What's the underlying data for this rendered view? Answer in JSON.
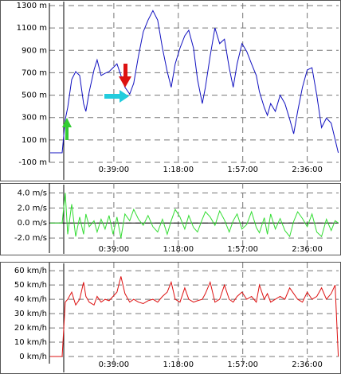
{
  "chart_data": [
    {
      "type": "line",
      "color": "#1010c0",
      "x": [
        0.5,
        7.7,
        9.6,
        11.1,
        13.5,
        15.9,
        18.3,
        20.7,
        22.1,
        24.1,
        27,
        28.9,
        31.3,
        33.7,
        36.1,
        38.5,
        40.9,
        43.3,
        45.7,
        48.6,
        51,
        53.9,
        56.8,
        59.7,
        62.6,
        65.5,
        68.4,
        71.3,
        73.7,
        76.1,
        79,
        81.9,
        84.3,
        87.2,
        89.6,
        92.5,
        94.4,
        97.3,
        100.2,
        103,
        105.9,
        108.8,
        111.2,
        113.6,
        116.5,
        119.4,
        122.3,
        125.2,
        127.1,
        130,
        131.9,
        133.9,
        136.7,
        139.6,
        142.5,
        145.4,
        147.8,
        150.2,
        153.1,
        156,
        158.9,
        161.8,
        164.7,
        167.6,
        170.5,
        172.9,
        174.8
      ],
      "values": [
        -15,
        -15,
        283,
        390,
        640,
        710,
        675,
        425,
        355,
        530,
        725,
        815,
        675,
        695,
        710,
        745,
        780,
        675,
        570,
        510,
        605,
        850,
        1065,
        1170,
        1255,
        1170,
        920,
        710,
        570,
        780,
        920,
        1030,
        1080,
        920,
        640,
        425,
        570,
        850,
        1100,
        960,
        1000,
        745,
        570,
        780,
        960,
        890,
        780,
        675,
        530,
        390,
        320,
        425,
        355,
        500,
        425,
        285,
        155,
        355,
        570,
        725,
        745,
        500,
        210,
        295,
        250,
        105,
        -15
      ],
      "xlim": [
        0,
        175
      ],
      "ylim": [
        -100,
        1300
      ],
      "xticks": [
        {
          "value": 39,
          "label": "0:39:00"
        },
        {
          "value": 78,
          "label": "1:18:00"
        },
        {
          "value": 117,
          "label": "1:57:00"
        },
        {
          "value": 156,
          "label": "2:36:00"
        }
      ],
      "yticks": [
        {
          "value": 1300,
          "label": "1300 m"
        },
        {
          "value": 1100,
          "label": "1100 m"
        },
        {
          "value": 900,
          "label": "900 m"
        },
        {
          "value": 700,
          "label": "700 m"
        },
        {
          "value": 500,
          "label": "500 m"
        },
        {
          "value": 300,
          "label": "300 m"
        },
        {
          "value": 100,
          "label": "100 m"
        },
        {
          "value": -100,
          "label": "-100 m"
        }
      ],
      "grid": true
    },
    {
      "type": "line",
      "color": "#33dd33",
      "x": [
        0.5,
        7.7,
        9.6,
        11.1,
        13.5,
        15.9,
        18.3,
        20.7,
        22.1,
        24.1,
        27,
        28.9,
        31.3,
        33.7,
        36.1,
        38.5,
        40.9,
        43.3,
        45.7,
        48.6,
        51,
        53.9,
        56.8,
        59.7,
        62.6,
        65.5,
        68.4,
        71.3,
        73.7,
        76.1,
        79,
        81.9,
        84.3,
        87.2,
        89.6,
        92.5,
        94.4,
        97.3,
        100.2,
        103,
        105.9,
        108.8,
        111.2,
        113.6,
        116.5,
        119.4,
        122.3,
        125.2,
        127.1,
        130,
        131.9,
        133.9,
        136.7,
        139.6,
        142.5,
        145.4,
        147.8,
        150.2,
        153.1,
        156,
        158.9,
        161.8,
        164.7,
        167.6,
        170.5,
        172.9,
        174.8
      ],
      "values": [
        0,
        0,
        4.0,
        -1.5,
        2.5,
        -1.8,
        0.8,
        -1.5,
        1.2,
        -0.5,
        0.3,
        -1.2,
        0.5,
        -0.8,
        1.0,
        -1.5,
        0.8,
        -2.0,
        1.2,
        0.3,
        1.8,
        0.5,
        -0.3,
        1.0,
        -0.5,
        -1.2,
        0.5,
        -1.5,
        0.3,
        1.8,
        0.8,
        -0.8,
        1.0,
        -0.6,
        -1.2,
        0.5,
        1.5,
        0.8,
        -0.3,
        1.6,
        0.4,
        -1.2,
        0.3,
        1.2,
        -0.8,
        -0.2,
        1.5,
        -0.6,
        -1.3,
        0.7,
        -1.5,
        1.2,
        -0.8,
        0.6,
        -1.0,
        -1.8,
        0.2,
        1.5,
        0.6,
        -0.5,
        1.2,
        -1.2,
        -1.8,
        0.5,
        -1.0,
        0.3,
        0
      ],
      "xlim": [
        0,
        175
      ],
      "ylim": [
        -4,
        5
      ],
      "xticks": [
        {
          "value": 39,
          "label": "0:39:00"
        },
        {
          "value": 78,
          "label": "1:18:00"
        },
        {
          "value": 117,
          "label": "1:57:00"
        },
        {
          "value": 156,
          "label": "2:36:00"
        }
      ],
      "yticks": [
        {
          "value": 4,
          "label": "4.0 m/s"
        },
        {
          "value": 2,
          "label": "2.0 m/s"
        },
        {
          "value": 0,
          "label": "0.0 m/s"
        },
        {
          "value": -2,
          "label": "-2.0 m/s"
        }
      ],
      "grid": true,
      "zero_line": true
    },
    {
      "type": "line",
      "color": "#dd1111",
      "x": [
        0.5,
        7.7,
        9.6,
        11.1,
        13.5,
        15.9,
        18.3,
        20.7,
        22.1,
        24.1,
        27,
        28.9,
        31.3,
        33.7,
        36.1,
        38.5,
        40.9,
        43.3,
        45.7,
        48.6,
        51,
        53.9,
        56.8,
        59.7,
        62.6,
        65.5,
        68.4,
        71.3,
        73.7,
        76.1,
        79,
        81.9,
        84.3,
        87.2,
        89.6,
        92.5,
        94.4,
        97.3,
        100.2,
        103,
        105.9,
        108.8,
        111.2,
        113.6,
        116.5,
        119.4,
        122.3,
        125.2,
        127.1,
        130,
        131.9,
        133.9,
        136.7,
        139.6,
        142.5,
        145.4,
        147.8,
        150.2,
        153.1,
        156,
        158.9,
        161.8,
        164.7,
        167.6,
        170.5,
        172.9,
        174.8
      ],
      "values": [
        0,
        0,
        38,
        40,
        45,
        36,
        40,
        52,
        42,
        38,
        36,
        42,
        38,
        40,
        39,
        42,
        45,
        56,
        44,
        38,
        40,
        38,
        37,
        39,
        40,
        38,
        42,
        45,
        52,
        40,
        38,
        48,
        40,
        38,
        39,
        40,
        44,
        52,
        38,
        40,
        50,
        40,
        38,
        42,
        45,
        40,
        42,
        38,
        50,
        40,
        44,
        38,
        40,
        42,
        40,
        48,
        44,
        40,
        38,
        45,
        40,
        42,
        48,
        40,
        44,
        50,
        0
      ],
      "xlim": [
        0,
        175
      ],
      "ylim": [
        -5,
        64
      ],
      "xticks": [
        {
          "value": 39,
          "label": "0:39:00"
        },
        {
          "value": 78,
          "label": "1:18:00"
        },
        {
          "value": 117,
          "label": "1:57:00"
        },
        {
          "value": 156,
          "label": "2:36:00"
        }
      ],
      "yticks": [
        {
          "value": 60,
          "label": "60 km/h"
        },
        {
          "value": 50,
          "label": "50 km/h"
        },
        {
          "value": 40,
          "label": "40 km/h"
        },
        {
          "value": 30,
          "label": "30 km/h"
        },
        {
          "value": 20,
          "label": "20 km/h"
        },
        {
          "value": 10,
          "label": "10 km/h"
        },
        {
          "value": 0,
          "label": "0 km/h"
        }
      ],
      "grid": true
    }
  ]
}
